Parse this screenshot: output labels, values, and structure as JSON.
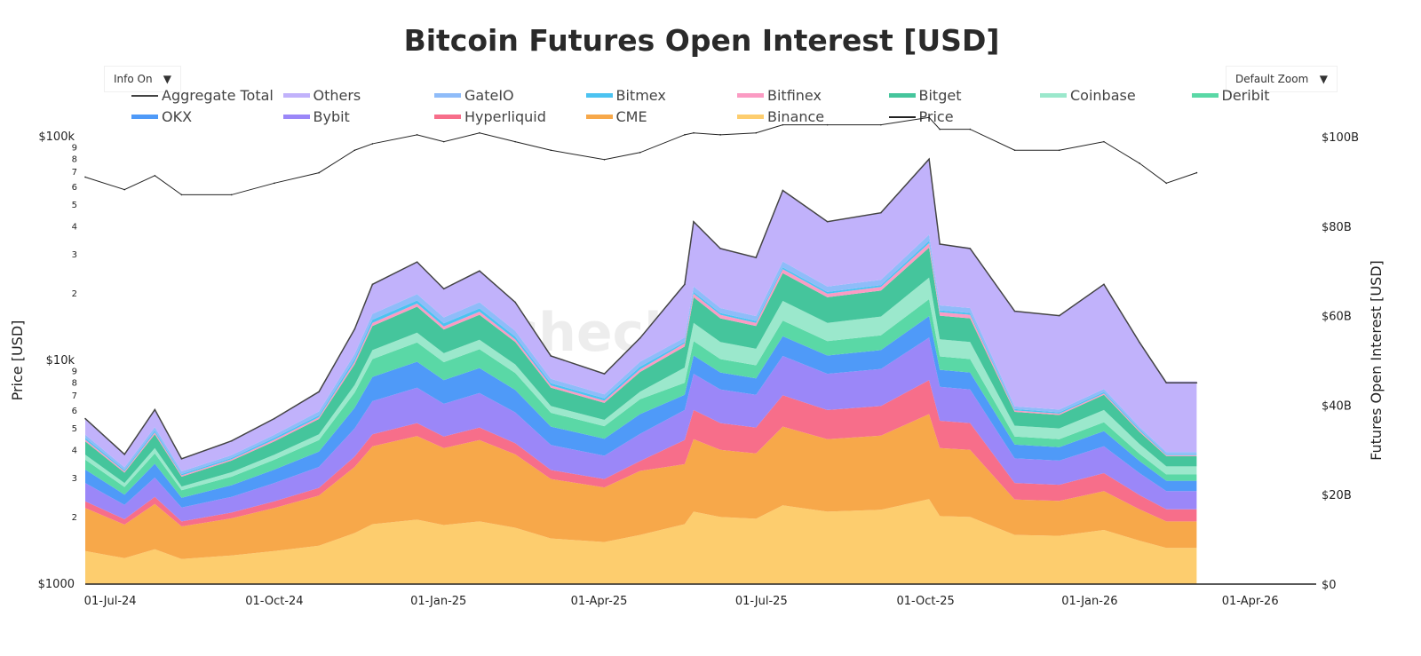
{
  "title": "Bitcoin Futures Open Interest [USD]",
  "controls": {
    "info": "Info On",
    "zoom": "Default Zoom",
    "arrow": "▼"
  },
  "watermark": "checkonchain",
  "chart_data": {
    "type": "area",
    "title": "Bitcoin Futures Open Interest [USD]",
    "ylabel_left": "Price [USD]",
    "ylabel_right": "Futures Open Interest [USD]",
    "y_left_scale": "log",
    "y_left_range": [
      1000,
      100000
    ],
    "y_right_range": [
      0,
      100
    ],
    "x_range": [
      "2024-06-17",
      "2026-05-08"
    ],
    "legend_placement": "top",
    "grid": false,
    "x_ticks": [
      "01-Jul-24",
      "01-Oct-24",
      "01-Jan-25",
      "01-Apr-25",
      "01-Jul-25",
      "01-Oct-25",
      "01-Jan-26",
      "01-Apr-26"
    ],
    "x_tick_dates": [
      "2024-07-01",
      "2024-10-01",
      "2025-01-01",
      "2025-04-01",
      "2025-07-01",
      "2025-10-01",
      "2026-01-01",
      "2026-04-01"
    ],
    "y_left_ticks": [
      {
        "v": 100000,
        "t": "$100k"
      },
      {
        "v": 90000,
        "t": "9"
      },
      {
        "v": 80000,
        "t": "8"
      },
      {
        "v": 70000,
        "t": "7"
      },
      {
        "v": 60000,
        "t": "6"
      },
      {
        "v": 50000,
        "t": "5"
      },
      {
        "v": 40000,
        "t": "4"
      },
      {
        "v": 30000,
        "t": "3"
      },
      {
        "v": 20000,
        "t": "2"
      },
      {
        "v": 10000,
        "t": "$10k"
      },
      {
        "v": 9000,
        "t": "9"
      },
      {
        "v": 8000,
        "t": "8"
      },
      {
        "v": 7000,
        "t": "7"
      },
      {
        "v": 6000,
        "t": "6"
      },
      {
        "v": 5000,
        "t": "5"
      },
      {
        "v": 4000,
        "t": "4"
      },
      {
        "v": 3000,
        "t": "3"
      },
      {
        "v": 2000,
        "t": "2"
      },
      {
        "v": 1000,
        "t": "$1000"
      }
    ],
    "y_right_ticks": [
      {
        "v": 0,
        "t": "$0"
      },
      {
        "v": 20,
        "t": "$20B"
      },
      {
        "v": 40,
        "t": "$40B"
      },
      {
        "v": 60,
        "t": "$60B"
      },
      {
        "v": 80,
        "t": "$80B"
      },
      {
        "v": 100,
        "t": "$100B"
      }
    ],
    "dates": [
      "2024-06-17",
      "2024-07-09",
      "2024-07-26",
      "2024-08-10",
      "2024-09-07",
      "2024-10-01",
      "2024-10-26",
      "2024-11-15",
      "2024-11-25",
      "2024-12-20",
      "2025-01-04",
      "2025-01-24",
      "2025-02-13",
      "2025-03-05",
      "2025-04-04",
      "2025-04-24",
      "2025-05-19",
      "2025-05-24",
      "2025-06-08",
      "2025-06-28",
      "2025-07-13",
      "2025-08-07",
      "2025-09-06",
      "2025-10-03",
      "2025-10-09",
      "2025-10-26",
      "2025-11-20",
      "2025-12-15",
      "2026-01-09",
      "2026-01-29",
      "2026-02-13",
      "2026-03-02"
    ],
    "units_oi": "billion USD",
    "series": [
      {
        "name": "Binance",
        "color": "#fdcd6e",
        "values": [
          7.4,
          5.8,
          7.8,
          5.6,
          6.4,
          7.4,
          8.6,
          11.4,
          13.4,
          14.4,
          13.2,
          14,
          12.6,
          10.2,
          9.4,
          11,
          13.4,
          16.2,
          15,
          14.6,
          17.6,
          16.2,
          16.6,
          19,
          15.2,
          15,
          11,
          10.8,
          12.1,
          9.7,
          8.1,
          8.1
        ]
      },
      {
        "name": "CME",
        "color": "#f7a84a",
        "values": [
          9.6,
          7.5,
          10.1,
          7.3,
          8.3,
          9.6,
          11.2,
          14.8,
          17.4,
          18.7,
          17.2,
          18.2,
          16.4,
          13.3,
          12.2,
          14.3,
          13.4,
          16.2,
          15,
          14.6,
          17.6,
          16.2,
          16.6,
          19,
          15.2,
          15,
          7.9,
          7.8,
          8.7,
          7,
          5.9,
          5.9
        ]
      },
      {
        "name": "Hyperliquid",
        "color": "#f76e8a",
        "values": [
          1.5,
          1.2,
          1.6,
          1.1,
          1.3,
          1.5,
          1.7,
          2.3,
          2.7,
          2.9,
          2.6,
          2.8,
          2.5,
          2,
          1.9,
          2.2,
          5.4,
          6.5,
          6,
          5.8,
          7,
          6.5,
          6.6,
          7.6,
          6.1,
          6,
          3.7,
          3.6,
          4,
          3.2,
          2.7,
          2.7
        ]
      },
      {
        "name": "Bybit",
        "color": "#9b87f8",
        "values": [
          4.1,
          3.2,
          4.3,
          3.1,
          3.5,
          4.1,
          4.7,
          6.3,
          7.4,
          7.9,
          7.3,
          7.7,
          6.9,
          5.6,
          5.2,
          6.1,
          6.7,
          8.1,
          7.5,
          7.3,
          8.8,
          8.1,
          8.3,
          9.5,
          7.6,
          7.5,
          5.5,
          5.4,
          6,
          4.9,
          4.1,
          4.1
        ]
      },
      {
        "name": "OKX",
        "color": "#4f9af8",
        "values": [
          3,
          2.3,
          3.1,
          2.2,
          2.6,
          3,
          3.4,
          4.6,
          5.4,
          5.8,
          5.3,
          5.6,
          5,
          4.1,
          3.8,
          4.4,
          3.4,
          4.1,
          3.8,
          3.7,
          4.4,
          4.1,
          4.2,
          4.8,
          3.8,
          3.8,
          3.1,
          3,
          3.4,
          2.7,
          2.3,
          2.3
        ]
      },
      {
        "name": "Deribit",
        "color": "#5ad8a6",
        "values": [
          2.2,
          1.7,
          2.3,
          1.7,
          1.9,
          2.2,
          2.6,
          3.4,
          4,
          4.3,
          4,
          4.2,
          3.8,
          3.1,
          2.8,
          3.3,
          2.7,
          3.2,
          3,
          2.9,
          3.5,
          3.2,
          3.3,
          3.8,
          3,
          3,
          1.8,
          1.8,
          2,
          1.6,
          1.4,
          1.4
        ]
      },
      {
        "name": "Coinbase",
        "color": "#9be8cc",
        "values": [
          1.1,
          0.9,
          1.2,
          0.8,
          1,
          1.1,
          1.3,
          1.7,
          2,
          2.2,
          2,
          2.1,
          1.9,
          1.5,
          1.4,
          1.7,
          3.4,
          4.1,
          3.8,
          3.7,
          4.4,
          4.1,
          4.2,
          4.8,
          3.8,
          3.8,
          2.4,
          2.4,
          2.7,
          2.2,
          1.8,
          1.8
        ]
      },
      {
        "name": "Bitget",
        "color": "#45c59c",
        "values": [
          3,
          2.3,
          3.1,
          2.2,
          2.6,
          3,
          3.4,
          4.6,
          5.4,
          5.8,
          5.3,
          5.6,
          5,
          4.1,
          3.8,
          4.4,
          4.7,
          5.7,
          5.3,
          5.1,
          6.2,
          5.7,
          5.8,
          6.7,
          5.3,
          5.3,
          3.1,
          3,
          3.4,
          2.7,
          2.3,
          2.3
        ]
      },
      {
        "name": "Bitfinex",
        "color": "#fb9bc3",
        "values": [
          0.4,
          0.3,
          0.4,
          0.3,
          0.3,
          0.4,
          0.4,
          0.6,
          0.7,
          0.7,
          0.7,
          0.7,
          0.6,
          0.5,
          0.5,
          0.6,
          0.7,
          0.8,
          0.8,
          0.7,
          0.9,
          0.8,
          0.8,
          1,
          0.8,
          0.8,
          0.3,
          0.3,
          0.3,
          0.3,
          0.2,
          0.2
        ]
      },
      {
        "name": "Bitmex",
        "color": "#4cc3f1",
        "values": [
          0.4,
          0.3,
          0.4,
          0.3,
          0.3,
          0.4,
          0.4,
          0.6,
          0.7,
          0.7,
          0.7,
          0.7,
          0.6,
          0.5,
          0.5,
          0.6,
          0.3,
          0.4,
          0.4,
          0.4,
          0.4,
          0.4,
          0.4,
          0.5,
          0.4,
          0.4,
          0.3,
          0.3,
          0.3,
          0.3,
          0.2,
          0.2
        ]
      },
      {
        "name": "GateIO",
        "color": "#8fbcf9",
        "values": [
          0.7,
          0.6,
          0.8,
          0.6,
          0.6,
          0.7,
          0.9,
          1.1,
          1.3,
          1.4,
          1.3,
          1.4,
          1.3,
          1,
          0.9,
          1.1,
          1,
          1.2,
          1.1,
          1.1,
          1.3,
          1.2,
          1.2,
          1.4,
          1.1,
          1.1,
          0.6,
          0.6,
          0.7,
          0.5,
          0.5,
          0.5
        ]
      },
      {
        "name": "Others",
        "color": "#c1b2fb",
        "values": [
          3.7,
          2.9,
          3.9,
          2.8,
          3.2,
          3.7,
          4.3,
          5.7,
          6.7,
          7.2,
          6.6,
          7,
          6.3,
          5.1,
          4.7,
          5.5,
          12.1,
          14.6,
          13.5,
          13.1,
          15.8,
          14.6,
          14.9,
          17.1,
          13.7,
          13.5,
          21.4,
          21,
          23.5,
          18.9,
          15.8,
          15.8
        ]
      }
    ],
    "aggregate_total": {
      "name": "Aggregate Total",
      "color": "#444444",
      "values": [
        37,
        29,
        39,
        28,
        32,
        37,
        43,
        57,
        67,
        72,
        66,
        70,
        63,
        51,
        47,
        55,
        67,
        81,
        75,
        73,
        88,
        81,
        83,
        95,
        76,
        75,
        61,
        60,
        67,
        54,
        45,
        45
      ]
    },
    "price": {
      "name": "Price",
      "color": "#222222",
      "values": [
        66000,
        58000,
        67000,
        55000,
        55000,
        62000,
        69000,
        87000,
        93000,
        102000,
        95000,
        104000,
        95000,
        87000,
        79000,
        85000,
        102000,
        104000,
        102000,
        104000,
        113000,
        113000,
        113000,
        122000,
        108000,
        108000,
        87000,
        87000,
        95000,
        76000,
        62000,
        69000
      ]
    },
    "legend": [
      {
        "name": "Aggregate Total",
        "color": "#444444",
        "kind": "line"
      },
      {
        "name": "Others",
        "color": "#c1b2fb",
        "kind": "area"
      },
      {
        "name": "GateIO",
        "color": "#8fbcf9",
        "kind": "area"
      },
      {
        "name": "Bitmex",
        "color": "#4cc3f1",
        "kind": "area"
      },
      {
        "name": "Bitfinex",
        "color": "#fb9bc3",
        "kind": "area"
      },
      {
        "name": "Bitget",
        "color": "#45c59c",
        "kind": "area"
      },
      {
        "name": "Coinbase",
        "color": "#9be8cc",
        "kind": "area"
      },
      {
        "name": "Deribit",
        "color": "#5ad8a6",
        "kind": "area"
      },
      {
        "name": "OKX",
        "color": "#4f9af8",
        "kind": "area"
      },
      {
        "name": "Bybit",
        "color": "#9b87f8",
        "kind": "area"
      },
      {
        "name": "Hyperliquid",
        "color": "#f76e8a",
        "kind": "area"
      },
      {
        "name": "CME",
        "color": "#f7a84a",
        "kind": "area"
      },
      {
        "name": "Binance",
        "color": "#fdcd6e",
        "kind": "area"
      },
      {
        "name": "Price",
        "color": "#222222",
        "kind": "line"
      }
    ]
  }
}
